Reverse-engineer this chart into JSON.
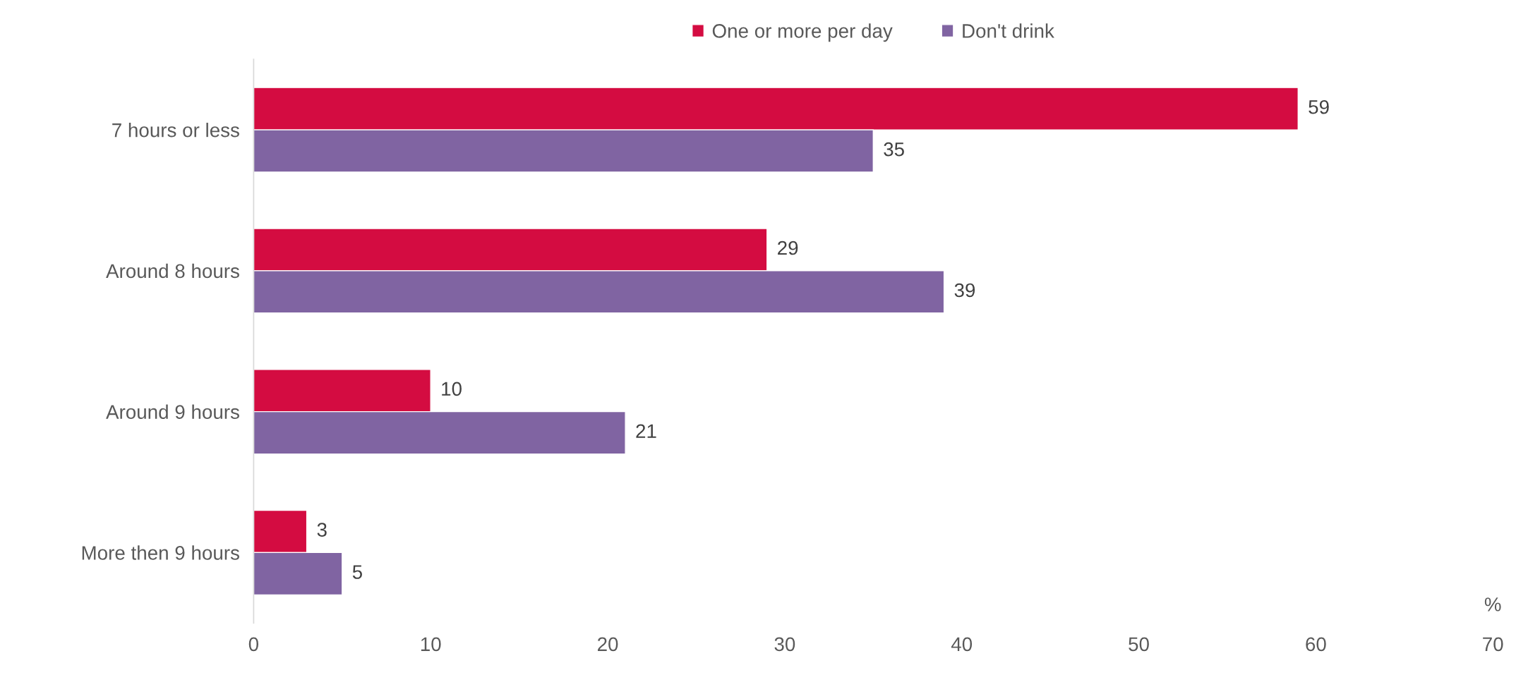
{
  "chart_data": {
    "type": "bar",
    "orientation": "horizontal",
    "xlabel": "%",
    "categories": [
      "7 hours or less",
      "Around 8 hours",
      "Around 9 hours",
      "More then 9 hours"
    ],
    "series": [
      {
        "name": "One or more per day",
        "color": "#d40c41",
        "values": [
          59,
          29,
          10,
          3
        ]
      },
      {
        "name": "Don't drink",
        "color": "#8064a2",
        "values": [
          35,
          39,
          21,
          5
        ]
      }
    ],
    "xlim": [
      0,
      70
    ],
    "xticks": [
      0,
      10,
      20,
      30,
      40,
      50,
      60,
      70
    ],
    "grid": false,
    "legend": "top",
    "data_labels": true
  }
}
